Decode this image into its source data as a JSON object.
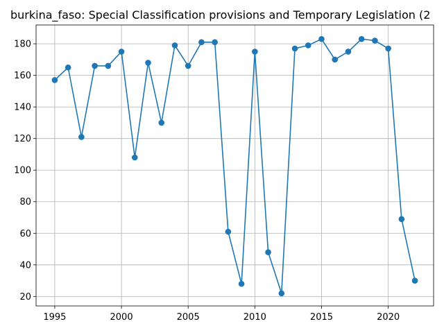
{
  "chart_data": {
    "type": "line",
    "title": "burkina_faso: Special Classification provisions and Temporary Legislation (2",
    "xlabel": "",
    "ylabel": "",
    "xlim": [
      1993.6,
      2023.4
    ],
    "ylim": [
      14,
      191.9
    ],
    "grid": true,
    "x_ticks": [
      1995,
      2000,
      2005,
      2010,
      2015,
      2020
    ],
    "y_ticks": [
      20,
      40,
      60,
      80,
      100,
      120,
      140,
      160,
      180
    ],
    "series": [
      {
        "color": "#1f77b4",
        "marker": "circle",
        "x": [
          1995,
          1996,
          1997,
          1998,
          1999,
          2000,
          2001,
          2002,
          2003,
          2004,
          2005,
          2006,
          2007,
          2008,
          2009,
          2010,
          2011,
          2012,
          2013,
          2014,
          2015,
          2016,
          2017,
          2018,
          2019,
          2020,
          2021,
          2022
        ],
        "values": [
          157,
          165,
          121,
          166,
          166,
          175,
          108,
          168,
          130,
          179,
          166,
          181,
          181,
          61,
          28,
          175,
          48,
          22,
          177,
          179,
          183,
          170,
          175,
          183,
          182,
          177,
          69,
          30
        ]
      }
    ]
  }
}
